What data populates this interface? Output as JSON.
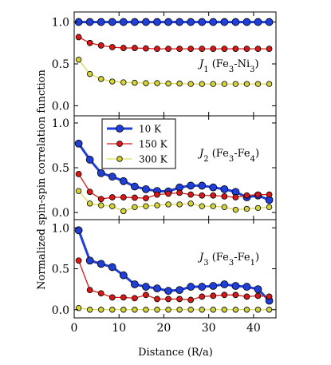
{
  "chart_data": {
    "type": "line",
    "xlabel": "Distance (R/a)",
    "ylabel": "Normalized spin-spin correlation function",
    "xlim": [
      0,
      45
    ],
    "xticks": [
      0,
      10,
      20,
      30,
      40
    ],
    "legend": {
      "placement": "upper-left of middle panel",
      "entries": [
        "10 K",
        "150 K",
        "300 K"
      ]
    },
    "colors": {
      "10 K": "#1f3fd6",
      "150 K": "#d81818",
      "300 K": "#d4d43a"
    },
    "x": [
      1,
      3.5,
      6,
      8.5,
      11,
      13.5,
      16,
      18.5,
      21,
      23.5,
      26,
      28.5,
      31,
      33.5,
      36,
      38.5,
      41,
      43.5
    ],
    "panels": [
      {
        "annotation": {
          "prefix": "J",
          "subscript": "1",
          "text_open": " (Fe",
          "sub_a": "3",
          "text_mid": "-Ni",
          "sub_b": "3",
          "text_close": ")"
        },
        "ylim": [
          -0.12,
          1.12
        ],
        "yticks": [
          "0.0",
          "0.5",
          "1.0"
        ],
        "series": [
          {
            "name": "10 K",
            "values": [
              1.0,
              1.0,
              1.0,
              1.0,
              1.0,
              1.0,
              1.0,
              1.0,
              1.0,
              1.0,
              1.0,
              1.0,
              1.0,
              1.0,
              1.0,
              1.0,
              1.0,
              1.0
            ]
          },
          {
            "name": "150 K",
            "values": [
              0.82,
              0.75,
              0.72,
              0.7,
              0.69,
              0.69,
              0.685,
              0.68,
              0.68,
              0.68,
              0.68,
              0.68,
              0.68,
              0.68,
              0.68,
              0.68,
              0.68,
              0.68
            ]
          },
          {
            "name": "300 K",
            "values": [
              0.55,
              0.38,
              0.32,
              0.29,
              0.28,
              0.275,
              0.27,
              0.27,
              0.265,
              0.265,
              0.26,
              0.26,
              0.26,
              0.26,
              0.26,
              0.26,
              0.26,
              0.26
            ]
          }
        ]
      },
      {
        "annotation": {
          "prefix": "J",
          "subscript": "2",
          "text_open": " (Fe",
          "sub_a": "3",
          "text_mid": "-Fe",
          "sub_b": "4",
          "text_close": ")"
        },
        "ylim": [
          -0.08,
          1.08
        ],
        "yticks": [
          "0.0",
          "0.5",
          "1.0"
        ],
        "series": [
          {
            "name": "10 K",
            "values": [
              0.77,
              0.59,
              0.44,
              0.4,
              0.35,
              0.29,
              0.26,
              0.24,
              0.235,
              0.28,
              0.3,
              0.3,
              0.28,
              0.26,
              0.23,
              0.17,
              0.19,
              0.14
            ]
          },
          {
            "name": "150 K",
            "values": [
              0.43,
              0.23,
              0.15,
              0.17,
              0.17,
              0.165,
              0.16,
              0.2,
              0.21,
              0.22,
              0.2,
              0.19,
              0.19,
              0.18,
              0.17,
              0.19,
              0.2,
              0.2
            ]
          },
          {
            "name": "300 K",
            "values": [
              0.24,
              0.1,
              0.08,
              0.07,
              0.015,
              0.06,
              0.07,
              0.08,
              0.09,
              0.09,
              0.1,
              0.07,
              0.07,
              0.06,
              0.03,
              0.04,
              0.05,
              0.06
            ]
          }
        ]
      },
      {
        "annotation": {
          "prefix": "J",
          "subscript": "3",
          "text_open": " (Fe",
          "sub_a": "3",
          "text_mid": "-Fe",
          "sub_b": "1",
          "text_close": ")"
        },
        "ylim": [
          -0.1,
          1.1
        ],
        "yticks": [
          "0.0",
          "0.5",
          "1.0"
        ],
        "series": [
          {
            "name": "10 K",
            "values": [
              0.97,
              0.6,
              0.56,
              0.52,
              0.42,
              0.31,
              0.28,
              0.26,
              0.23,
              0.24,
              0.28,
              0.28,
              0.29,
              0.31,
              0.29,
              0.28,
              0.25,
              0.11
            ]
          },
          {
            "name": "150 K",
            "values": [
              0.6,
              0.24,
              0.2,
              0.15,
              0.15,
              0.14,
              0.18,
              0.13,
              0.13,
              0.13,
              0.12,
              0.16,
              0.17,
              0.18,
              0.18,
              0.16,
              0.17,
              0.16
            ]
          },
          {
            "name": "300 K",
            "values": [
              0.02,
              0.0,
              0.0,
              0.0,
              0.0,
              0.0,
              0.0,
              0.0,
              0.0,
              0.0,
              0.0,
              0.0,
              0.0,
              0.0,
              0.0,
              0.0,
              0.0,
              0.0
            ]
          }
        ]
      }
    ]
  }
}
